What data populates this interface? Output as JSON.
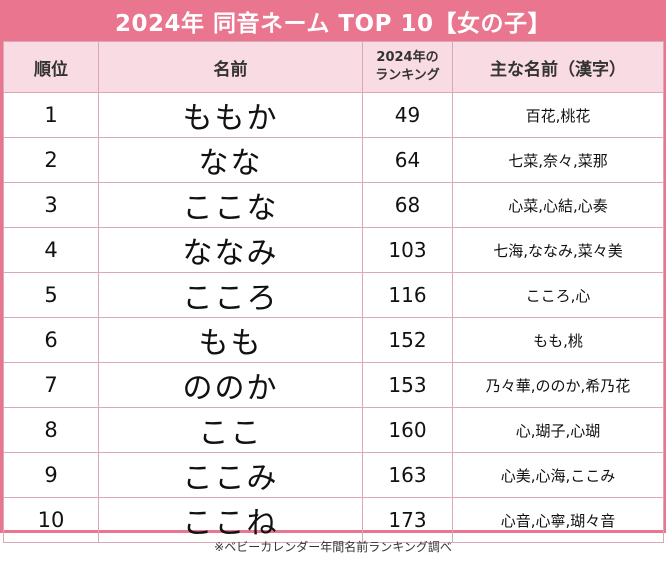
{
  "title": "2024年  同音ネーム TOP 10【女の子】",
  "table": {
    "header": [
      "順位",
      "名前",
      [
        "2024年の",
        "ランキング"
      ],
      "主な名前（漢字）"
    ],
    "rows": [
      [
        1,
        "ももか",
        49,
        "百花,桃花"
      ],
      [
        2,
        "なな",
        64,
        "七菜,奈々,菜那"
      ],
      [
        3,
        "ここな",
        68,
        "心菜,心結,心奏"
      ],
      [
        4,
        "ななみ",
        103,
        "七海,ななみ,菜々美"
      ],
      [
        5,
        "こころ",
        116,
        "こころ,心"
      ],
      [
        6,
        "もも",
        152,
        "もも,桃"
      ],
      [
        7,
        "ののか",
        153,
        "乃々華,ののか,希乃花"
      ],
      [
        8,
        "ここ",
        160,
        "心,瑚子,心瑚"
      ],
      [
        9,
        "ここみ",
        163,
        "心美,心海,ここみ"
      ],
      [
        10,
        "ここね",
        173,
        "心音,心寧,瑚々音"
      ]
    ]
  },
  "note": "※ベビーカレンダー年間名前ランキング調べ"
}
